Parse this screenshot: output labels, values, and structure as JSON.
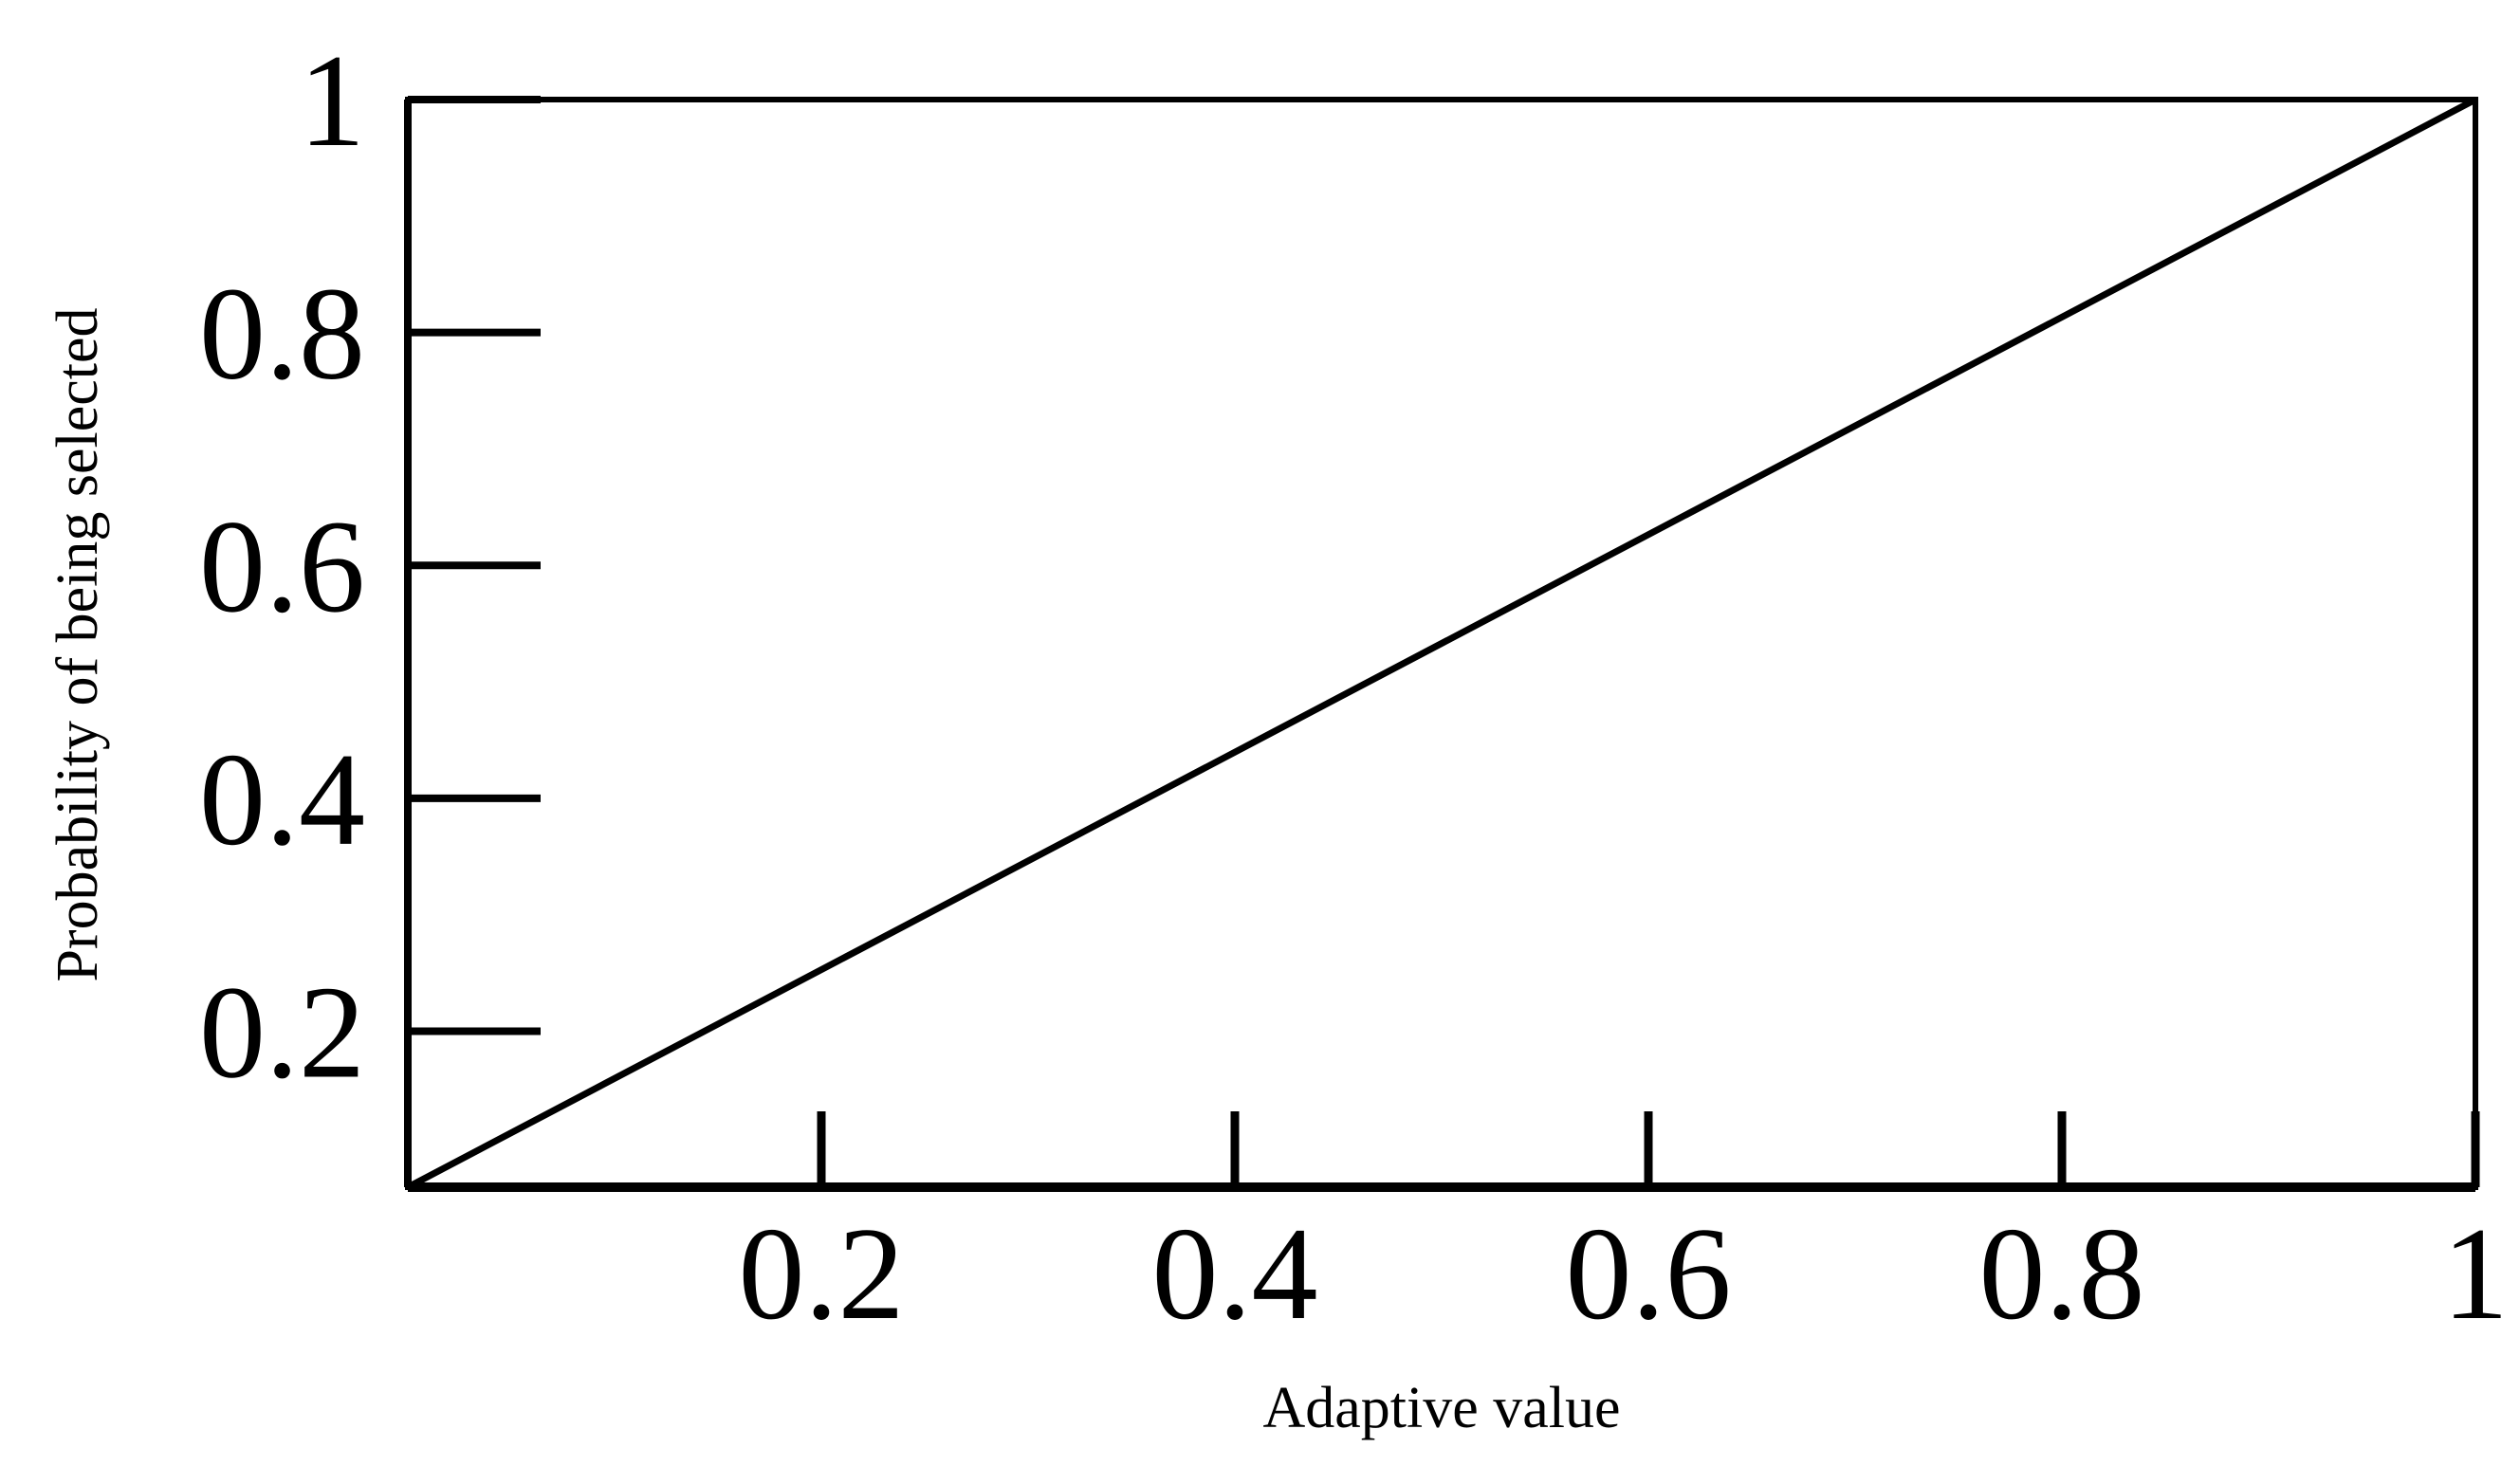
{
  "chart_data": {
    "type": "line",
    "title": "",
    "xlabel": "Adaptive value",
    "ylabel": "Probability of being selected",
    "xlim": [
      0,
      1
    ],
    "ylim": [
      0.066,
      1
    ],
    "x_ticks": [
      0.2,
      0.4,
      0.6,
      0.8,
      1
    ],
    "x_tick_labels": [
      "0.2",
      "0.4",
      "0.6",
      "0.8",
      "1"
    ],
    "y_ticks": [
      0.2,
      0.4,
      0.6,
      0.8,
      1
    ],
    "y_tick_labels": [
      "0.2",
      "0.4",
      "0.6",
      "0.8",
      "1"
    ],
    "grid": false,
    "legend": "none",
    "series": [
      {
        "x": [
          0,
          1
        ],
        "y": [
          0.066,
          1
        ],
        "color": "#000000"
      }
    ]
  }
}
